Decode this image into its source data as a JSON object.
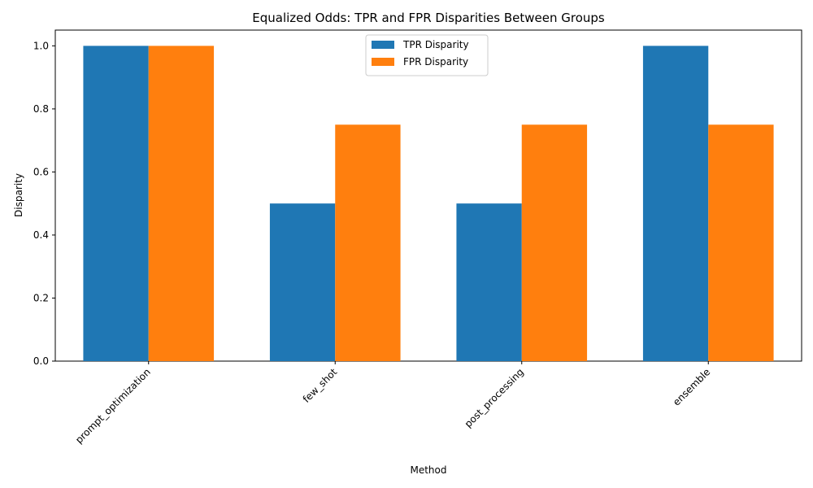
{
  "chart_data": {
    "type": "bar",
    "title": "Equalized Odds: TPR and FPR Disparities Between Groups",
    "xlabel": "Method",
    "ylabel": "Disparity",
    "categories": [
      "prompt_optimization",
      "few_shot",
      "post_processing",
      "ensemble"
    ],
    "series": [
      {
        "name": "TPR Disparity",
        "values": [
          1.0,
          0.5,
          0.5,
          1.0
        ],
        "color": "#1f77b4"
      },
      {
        "name": "FPR Disparity",
        "values": [
          1.0,
          0.75,
          0.75,
          0.75
        ],
        "color": "#ff7f0e"
      }
    ],
    "ylim": [
      0,
      1.05
    ],
    "yticks": [
      "0.0",
      "0.2",
      "0.4",
      "0.6",
      "0.8",
      "1.0"
    ],
    "grid": false,
    "legend_position": "top-center",
    "xtick_rotation": "45 degrees"
  }
}
